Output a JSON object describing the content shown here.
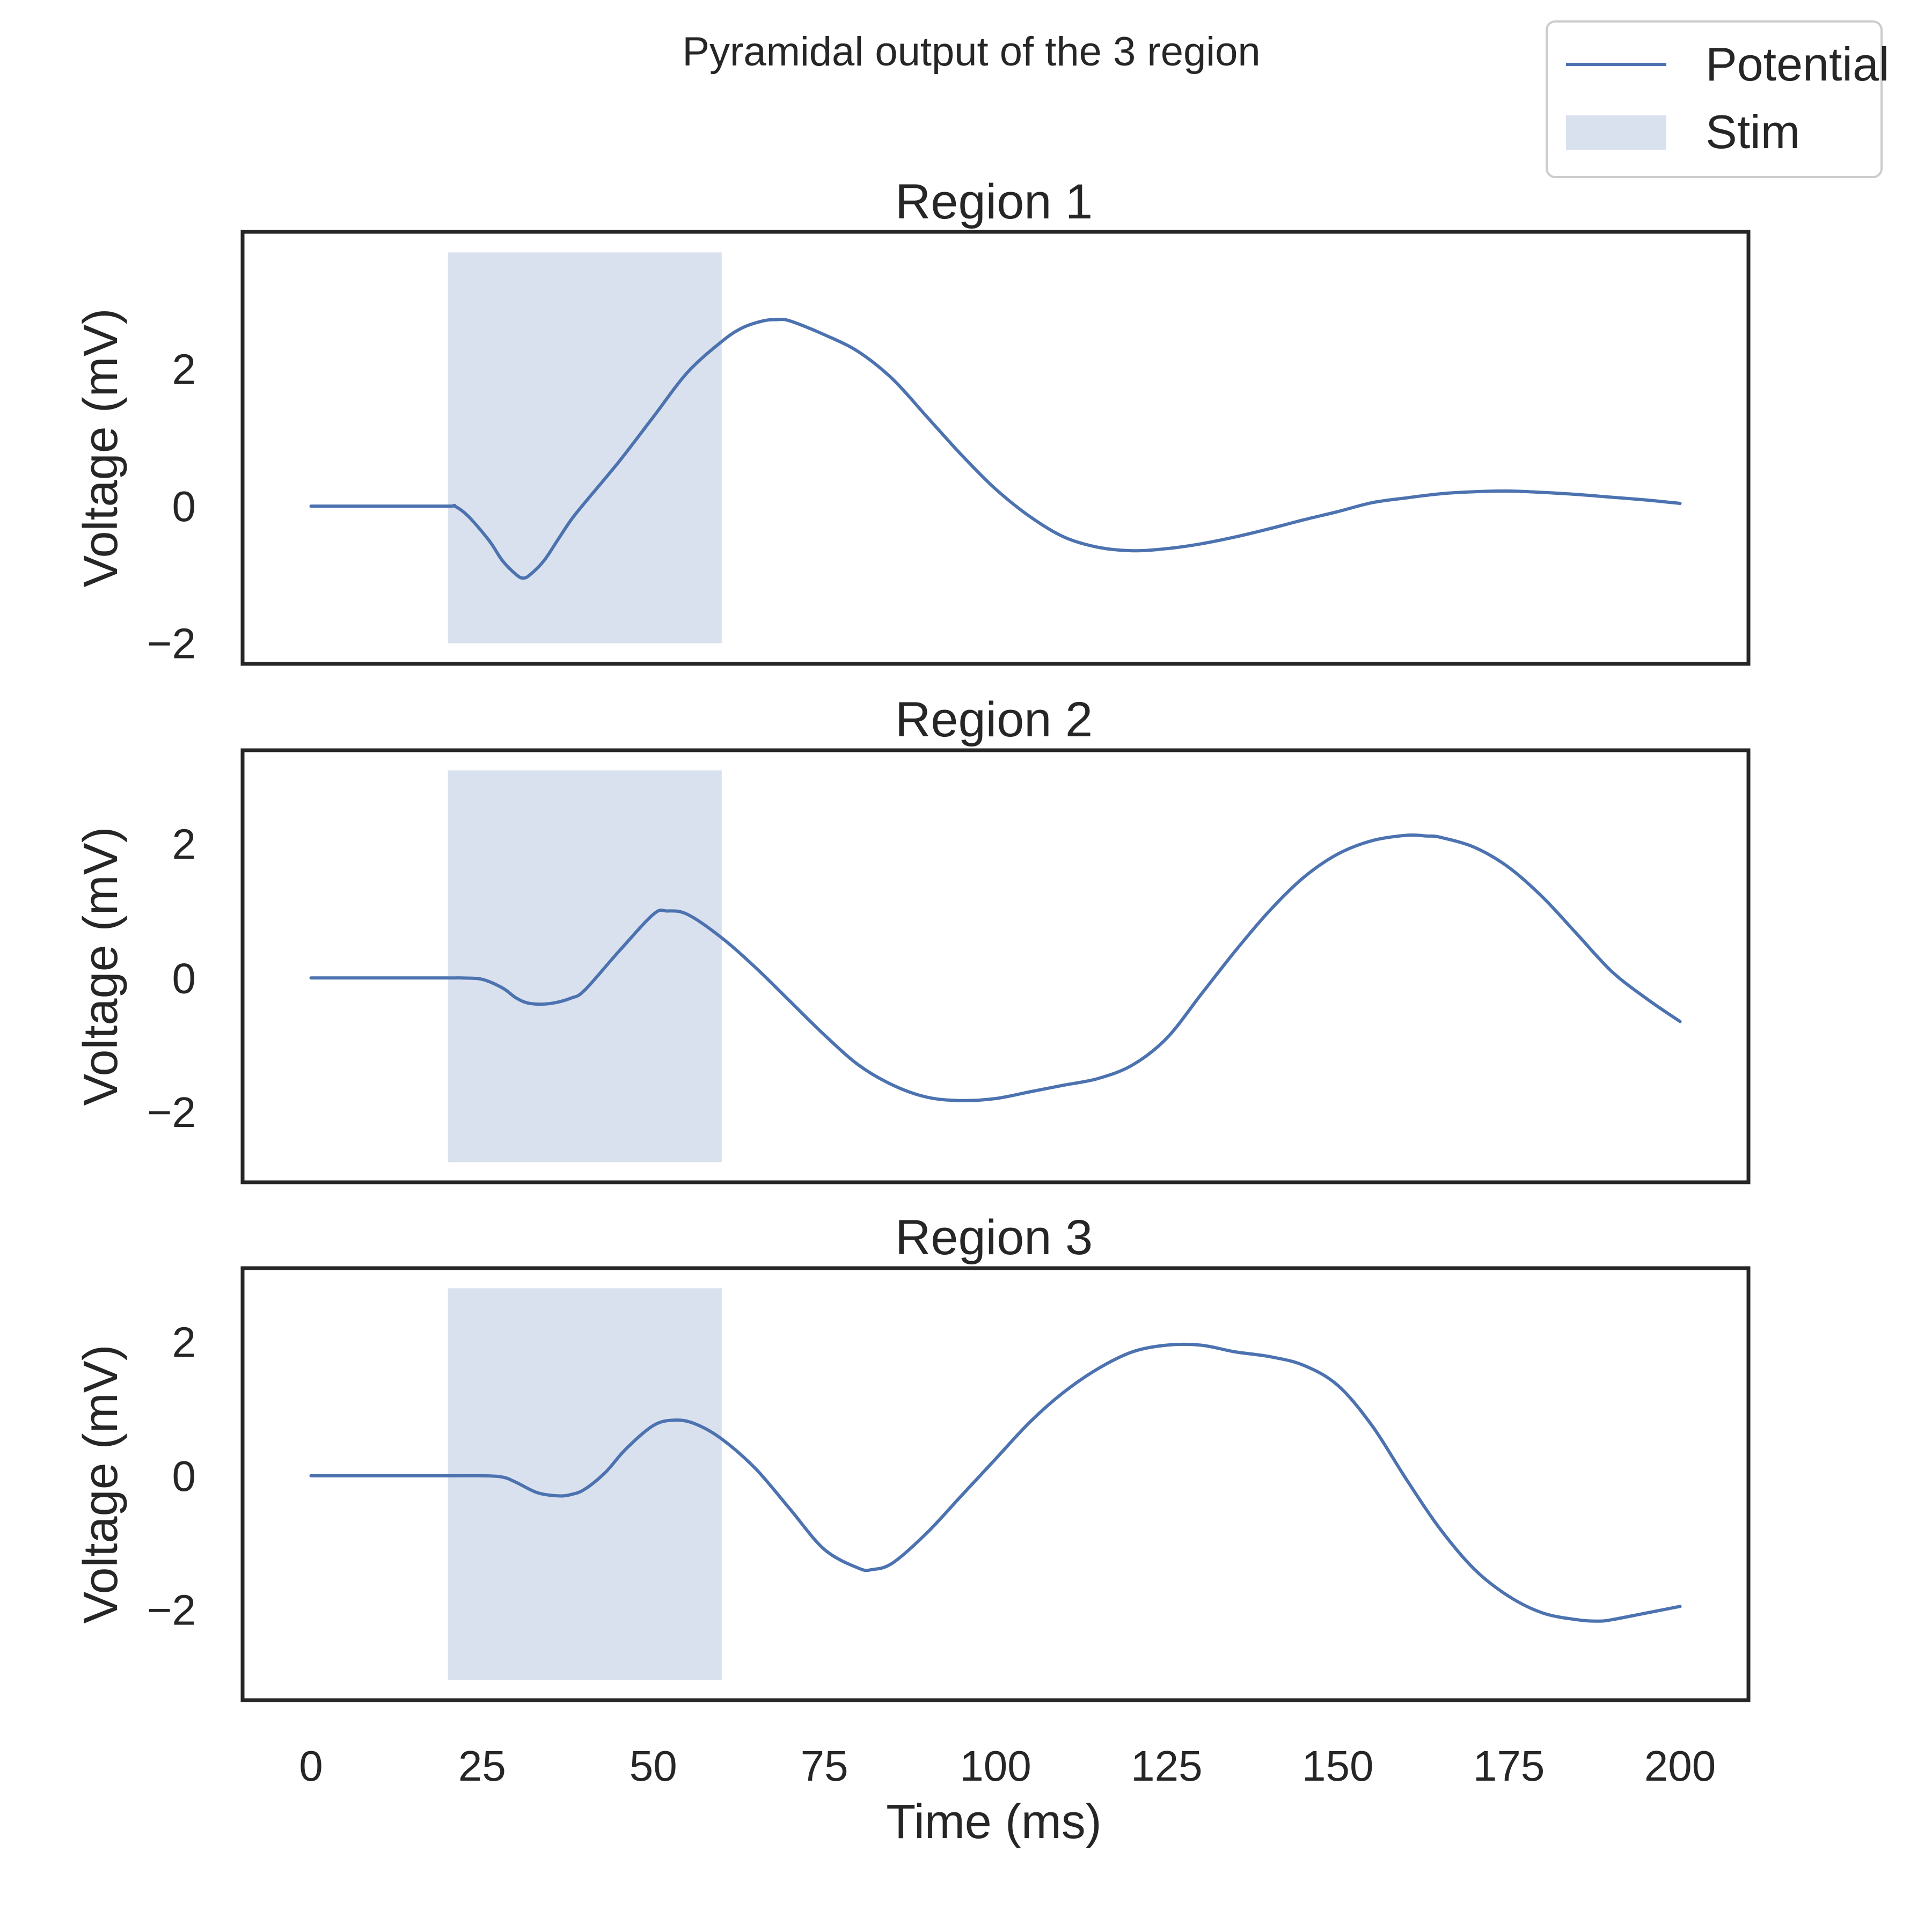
{
  "chart_data": {
    "type": "line",
    "title": "Pyramidal output of the 3 region",
    "xlabel": "Time (ms)",
    "xlim": [
      -10,
      210
    ],
    "xticks": [
      0,
      25,
      50,
      75,
      100,
      125,
      150,
      175,
      200
    ],
    "legend": {
      "placement": "top-right",
      "entries": [
        {
          "label": "Potential",
          "kind": "line",
          "color": "#4c72b0"
        },
        {
          "label": "Stim",
          "kind": "patch",
          "color": "#dae1ee"
        }
      ]
    },
    "grid": false,
    "panels": [
      {
        "title": "Region 1",
        "ylabel": "Voltage (mV)",
        "ylim": [
          -2.3,
          4.0
        ],
        "yticks": [
          -2,
          0,
          2
        ],
        "ytick_labels": [
          "−2",
          "0",
          "2"
        ],
        "stim": {
          "x_start": 20,
          "x_end": 60,
          "y_bottom": -2.0,
          "y_top": 3.7
        },
        "series": [
          {
            "x": [
              0,
              10,
              20,
              21,
              23,
              26,
              28,
              30,
              31,
              32,
              34,
              36,
              38,
              40,
              45,
              50,
              55,
              60,
              63,
              66,
              68,
              70,
              75,
              80,
              85,
              90,
              95,
              100,
              105,
              110,
              115,
              120,
              125,
              130,
              135,
              140,
              145,
              150,
              155,
              160,
              165,
              170,
              175,
              180,
              185,
              190,
              195,
              200
            ],
            "values": [
              0,
              0,
              0,
              0,
              -0.15,
              -0.5,
              -0.8,
              -1.0,
              -1.05,
              -1.0,
              -0.8,
              -0.5,
              -0.2,
              0.05,
              0.65,
              1.3,
              1.95,
              2.4,
              2.6,
              2.7,
              2.72,
              2.7,
              2.5,
              2.25,
              1.85,
              1.3,
              0.75,
              0.25,
              -0.15,
              -0.45,
              -0.6,
              -0.65,
              -0.62,
              -0.55,
              -0.45,
              -0.33,
              -0.2,
              -0.08,
              0.05,
              0.12,
              0.18,
              0.21,
              0.22,
              0.2,
              0.17,
              0.13,
              0.09,
              0.04
            ]
          }
        ]
      },
      {
        "title": "Region 2",
        "ylabel": "Voltage (mV)",
        "ylim": [
          -3.05,
          3.4
        ],
        "yticks": [
          -2,
          0,
          2
        ],
        "ytick_labels": [
          "−2",
          "0",
          "2"
        ],
        "stim": {
          "x_start": 20,
          "x_end": 60,
          "y_bottom": -2.75,
          "y_top": 3.1
        },
        "series": [
          {
            "x": [
              0,
              10,
              20,
              22,
              25,
              28,
              30,
              32,
              35,
              38,
              40,
              45,
              50,
              52,
              55,
              60,
              65,
              70,
              75,
              80,
              85,
              90,
              95,
              100,
              105,
              110,
              115,
              120,
              125,
              130,
              135,
              140,
              145,
              150,
              155,
              160,
              163,
              165,
              170,
              175,
              180,
              185,
              190,
              195,
              200
            ],
            "values": [
              0,
              0,
              0,
              0,
              -0.02,
              -0.15,
              -0.3,
              -0.38,
              -0.38,
              -0.3,
              -0.18,
              0.4,
              0.95,
              1.0,
              0.95,
              0.6,
              0.15,
              -0.35,
              -0.85,
              -1.3,
              -1.6,
              -1.78,
              -1.83,
              -1.8,
              -1.7,
              -1.6,
              -1.5,
              -1.3,
              -0.9,
              -0.25,
              0.4,
              1.0,
              1.5,
              1.85,
              2.05,
              2.13,
              2.12,
              2.1,
              1.95,
              1.65,
              1.2,
              0.65,
              0.1,
              -0.3,
              -0.65
            ]
          }
        ]
      },
      {
        "title": "Region 3",
        "ylabel": "Voltage (mV)",
        "ylim": [
          -3.35,
          3.1
        ],
        "yticks": [
          -2,
          0,
          2
        ],
        "ytick_labels": [
          "−2",
          "0",
          "2"
        ],
        "stim": {
          "x_start": 20,
          "x_end": 60,
          "y_bottom": -3.05,
          "y_top": 2.8
        },
        "series": [
          {
            "x": [
              0,
              10,
              20,
              25,
              28,
              30,
              33,
              36,
              38,
              40,
              43,
              46,
              50,
              53,
              56,
              60,
              65,
              70,
              75,
              80,
              82,
              85,
              90,
              95,
              100,
              105,
              110,
              115,
              120,
              125,
              130,
              135,
              140,
              145,
              150,
              155,
              160,
              165,
              170,
              175,
              180,
              185,
              188,
              190,
              195,
              200
            ],
            "values": [
              0,
              0,
              0,
              0,
              -0.02,
              -0.1,
              -0.25,
              -0.3,
              -0.28,
              -0.2,
              0.05,
              0.4,
              0.75,
              0.83,
              0.78,
              0.55,
              0.1,
              -0.5,
              -1.1,
              -1.38,
              -1.4,
              -1.3,
              -0.85,
              -0.3,
              0.25,
              0.8,
              1.25,
              1.6,
              1.85,
              1.95,
              1.95,
              1.85,
              1.78,
              1.65,
              1.35,
              0.75,
              -0.05,
              -0.8,
              -1.4,
              -1.8,
              -2.05,
              -2.15,
              -2.17,
              -2.15,
              -2.05,
              -1.95
            ]
          }
        ]
      }
    ]
  }
}
